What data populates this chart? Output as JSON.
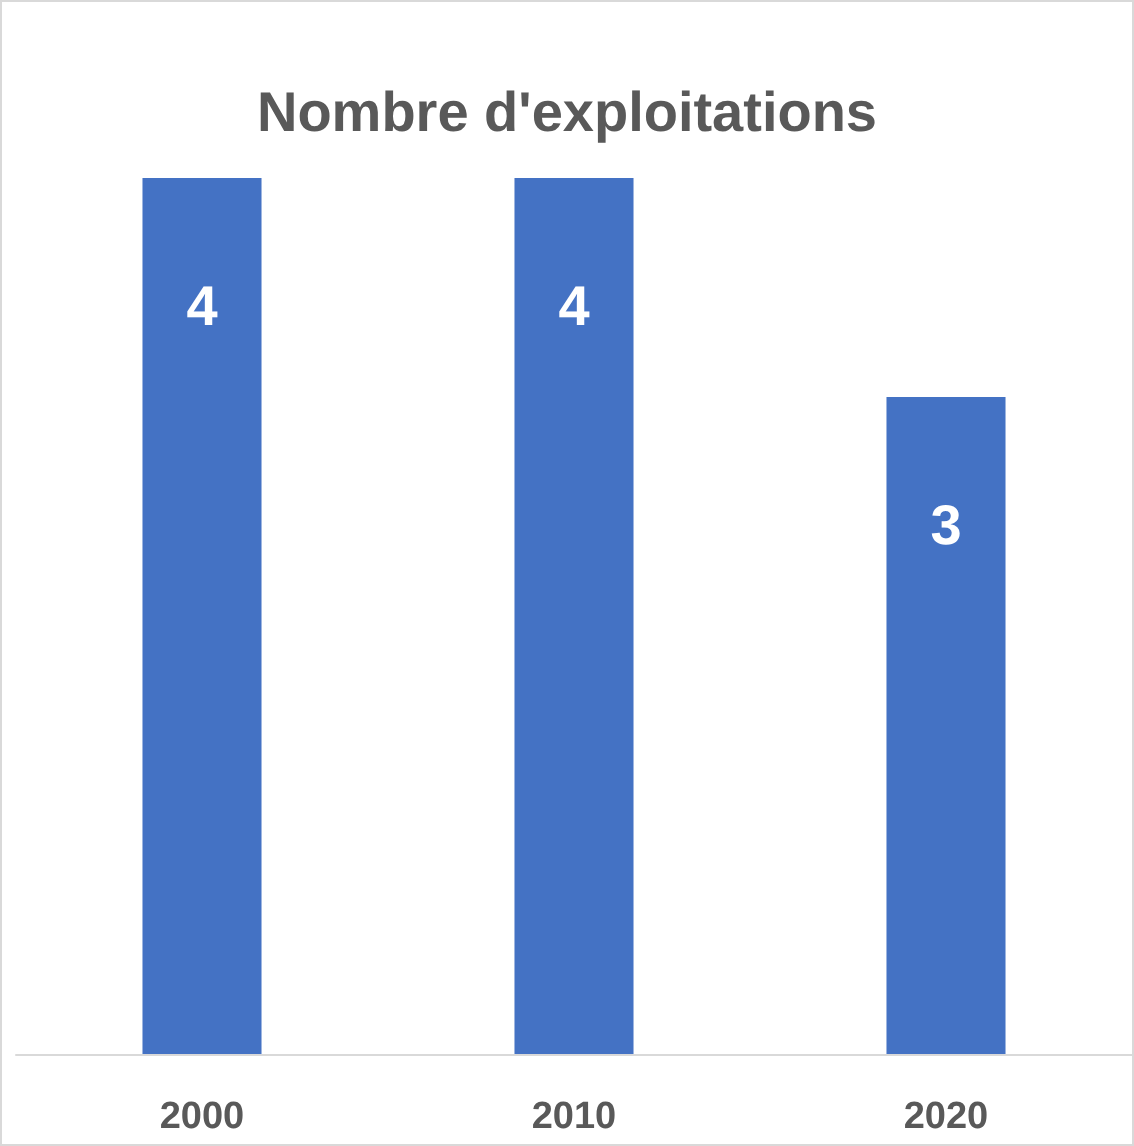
{
  "chart_data": {
    "type": "bar",
    "title": "Nombre d'exploitations",
    "categories": [
      "2000",
      "2010",
      "2020"
    ],
    "values": [
      4,
      4,
      3
    ],
    "color": "#4472c4",
    "data_labels": true
  }
}
